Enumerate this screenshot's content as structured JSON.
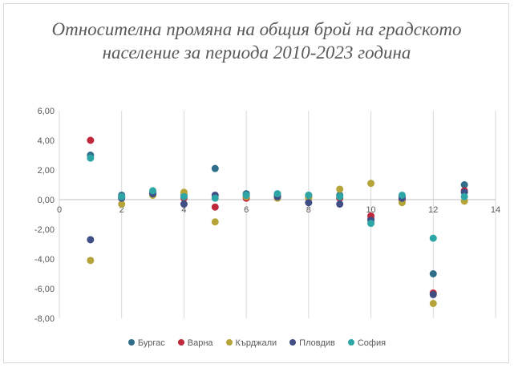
{
  "chart_data": {
    "type": "scatter",
    "title": "Относителна промяна на общия брой на градското население за периода 2010-2023 година",
    "xlim": [
      0,
      14
    ],
    "ylim": [
      -8,
      6
    ],
    "x_ticks": [
      "0",
      "2",
      "4",
      "6",
      "8",
      "10",
      "12",
      "14"
    ],
    "y_ticks": [
      "6,00",
      "4,00",
      "2,00",
      "0,00",
      "-2,00",
      "-4,00",
      "-6,00",
      "-8,00"
    ],
    "grid": "vertical",
    "legend_position": "bottom",
    "series": [
      {
        "name": "Бургас",
        "color": "#2f6f8a",
        "points": [
          [
            1,
            3.0
          ],
          [
            2,
            0.3
          ],
          [
            3,
            0.5
          ],
          [
            4,
            0.3
          ],
          [
            5,
            2.1
          ],
          [
            6,
            0.4
          ],
          [
            7,
            0.3
          ],
          [
            8,
            0.3
          ],
          [
            9,
            0.3
          ],
          [
            10,
            -1.3
          ],
          [
            11,
            0.2
          ],
          [
            12,
            -5.0
          ],
          [
            13,
            1.0
          ]
        ]
      },
      {
        "name": "Варна",
        "color": "#c0283c",
        "points": [
          [
            1,
            4.0
          ],
          [
            2,
            0.2
          ],
          [
            3,
            0.4
          ],
          [
            4,
            0.1
          ],
          [
            5,
            -0.5
          ],
          [
            6,
            0.1
          ],
          [
            7,
            0.2
          ],
          [
            8,
            0.2
          ],
          [
            9,
            0.1
          ],
          [
            10,
            -1.1
          ],
          [
            11,
            0.0
          ],
          [
            12,
            -6.3
          ],
          [
            13,
            0.6
          ]
        ]
      },
      {
        "name": "Кърджали",
        "color": "#b5a43a",
        "points": [
          [
            1,
            -4.1
          ],
          [
            2,
            -0.3
          ],
          [
            3,
            0.3
          ],
          [
            4,
            0.5
          ],
          [
            5,
            -1.5
          ],
          [
            6,
            0.2
          ],
          [
            7,
            0.1
          ],
          [
            8,
            0.1
          ],
          [
            9,
            0.7
          ],
          [
            10,
            1.1
          ],
          [
            11,
            -0.2
          ],
          [
            12,
            -7.0
          ],
          [
            13,
            -0.1
          ]
        ]
      },
      {
        "name": "Пловдив",
        "color": "#3f4f86",
        "points": [
          [
            1,
            -2.7
          ],
          [
            2,
            0.1
          ],
          [
            3,
            0.4
          ],
          [
            4,
            -0.3
          ],
          [
            5,
            0.3
          ],
          [
            6,
            0.3
          ],
          [
            7,
            0.2
          ],
          [
            8,
            -0.2
          ],
          [
            9,
            -0.3
          ],
          [
            10,
            -1.4
          ],
          [
            11,
            0.1
          ],
          [
            12,
            -6.4
          ],
          [
            13,
            0.5
          ]
        ]
      },
      {
        "name": "София",
        "color": "#2fa6a6",
        "points": [
          [
            1,
            2.8
          ],
          [
            2,
            0.2
          ],
          [
            3,
            0.6
          ],
          [
            4,
            0.2
          ],
          [
            5,
            0.1
          ],
          [
            6,
            0.3
          ],
          [
            7,
            0.4
          ],
          [
            8,
            0.3
          ],
          [
            9,
            0.2
          ],
          [
            10,
            -1.6
          ],
          [
            11,
            0.3
          ],
          [
            12,
            -2.6
          ],
          [
            13,
            0.2
          ]
        ]
      }
    ]
  }
}
